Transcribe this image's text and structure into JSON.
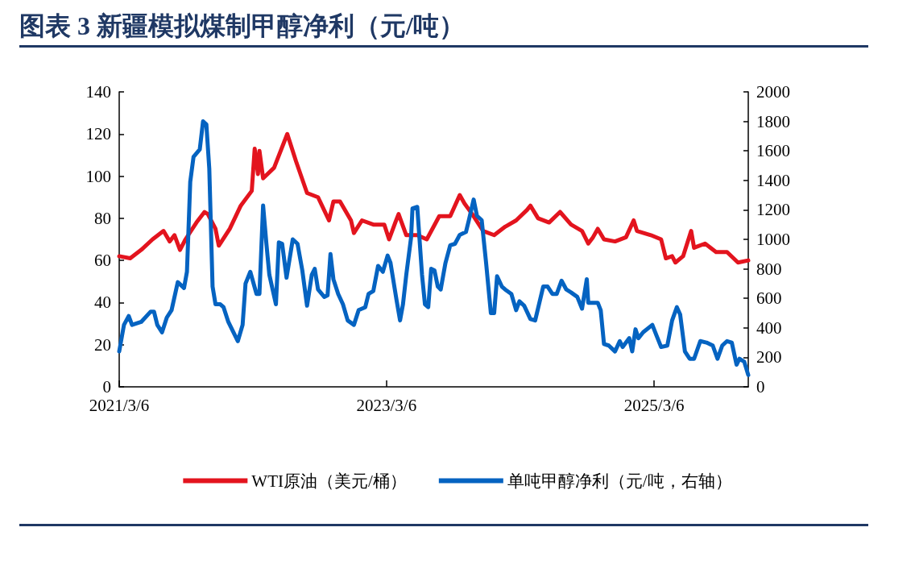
{
  "chart_data": {
    "type": "line",
    "title": "图表 3 新疆模拟煤制甲醇净利（元/吨）",
    "xlim": [
      "2021-03-06",
      "2025-11-18"
    ],
    "xticks": [
      {
        "value": "2021-03-06",
        "label": "2021/3/6"
      },
      {
        "value": "2023-03-06",
        "label": "2023/3/6"
      },
      {
        "value": "2025-03-06",
        "label": "2025/3/6"
      }
    ],
    "ylim": [
      0,
      140
    ],
    "yticks": [
      0,
      20,
      40,
      60,
      80,
      100,
      120,
      140
    ],
    "y2lim": [
      0,
      2000
    ],
    "y2ticks": [
      0,
      200,
      400,
      600,
      800,
      1000,
      1200,
      1400,
      1600,
      1800,
      2000
    ],
    "legend": "bottom",
    "grid": false,
    "marker": "none",
    "line_style": "solid",
    "series": [
      {
        "name": "WTI原油（美元/桶）",
        "color": "#e3141e",
        "x": [
          "2021-03-06",
          "2021-04-05",
          "2021-05-05",
          "2021-06-05",
          "2021-07-05",
          "2021-07-22",
          "2021-08-04",
          "2021-08-19",
          "2021-09-03",
          "2021-10-03",
          "2021-10-25",
          "2021-11-03",
          "2021-11-24",
          "2021-12-03",
          "2022-01-02",
          "2022-02-01",
          "2022-03-03",
          "2022-03-11",
          "2022-03-20",
          "2022-03-24",
          "2022-04-03",
          "2022-05-03",
          "2022-06-08",
          "2022-07-02",
          "2022-08-01",
          "2022-08-31",
          "2022-09-30",
          "2022-10-12",
          "2022-10-30",
          "2022-11-29",
          "2022-12-07",
          "2022-12-29",
          "2023-01-29",
          "2023-02-28",
          "2023-03-13",
          "2023-03-30",
          "2023-04-08",
          "2023-04-29",
          "2023-05-29",
          "2023-06-24",
          "2023-07-28",
          "2023-08-27",
          "2023-09-22",
          "2023-10-05",
          "2023-10-26",
          "2023-11-25",
          "2023-12-25",
          "2024-01-24",
          "2024-02-23",
          "2024-03-24",
          "2024-04-02",
          "2024-04-23",
          "2024-05-23",
          "2024-06-22",
          "2024-07-22",
          "2024-08-21",
          "2024-09-07",
          "2024-09-20",
          "2024-10-03",
          "2024-10-20",
          "2024-11-19",
          "2024-12-19",
          "2025-01-09",
          "2025-01-18",
          "2025-02-25",
          "2025-03-25",
          "2025-04-07",
          "2025-04-24",
          "2025-05-03",
          "2025-05-24",
          "2025-06-15",
          "2025-06-23",
          "2025-07-23",
          "2025-08-22",
          "2025-09-21",
          "2025-10-21",
          "2025-11-18"
        ],
        "values": [
          62,
          61,
          65,
          70,
          74,
          69,
          72,
          65,
          70,
          78,
          83,
          82,
          75,
          67,
          75,
          86,
          93,
          113,
          101,
          112,
          99,
          104,
          120,
          107,
          92,
          90,
          79,
          88,
          88,
          79,
          73,
          79,
          77,
          77,
          70,
          78,
          82,
          72,
          72,
          70,
          81,
          81,
          91,
          87,
          82,
          74,
          72,
          76,
          79,
          84,
          86,
          80,
          78,
          83,
          77,
          74,
          68,
          71,
          75,
          70,
          69,
          71,
          79,
          74,
          72,
          70,
          61,
          62,
          59,
          62,
          74,
          66,
          68,
          64,
          64,
          59,
          60
        ]
      },
      {
        "name": "单吨甲醇净利（元/吨，右轴）",
        "color": "#0563c1",
        "axis": "y2",
        "x": [
          "2021-03-06",
          "2021-03-19",
          "2021-04-01",
          "2021-04-10",
          "2021-05-05",
          "2021-05-31",
          "2021-06-09",
          "2021-06-18",
          "2021-07-01",
          "2021-07-14",
          "2021-07-27",
          "2021-08-13",
          "2021-08-30",
          "2021-09-07",
          "2021-09-16",
          "2021-09-25",
          "2021-10-12",
          "2021-10-21",
          "2021-10-30",
          "2021-11-07",
          "2021-11-16",
          "2021-11-24",
          "2021-12-07",
          "2021-12-16",
          "2021-12-29",
          "2022-01-24",
          "2022-02-06",
          "2022-02-14",
          "2022-02-27",
          "2022-03-16",
          "2022-03-24",
          "2022-04-03",
          "2022-04-12",
          "2022-04-20",
          "2022-05-08",
          "2022-05-16",
          "2022-05-25",
          "2022-06-06",
          "2022-06-23",
          "2022-07-06",
          "2022-07-19",
          "2022-08-01",
          "2022-08-14",
          "2022-08-22",
          "2022-08-31",
          "2022-09-17",
          "2022-09-26",
          "2022-10-04",
          "2022-10-12",
          "2022-10-25",
          "2022-11-07",
          "2022-11-20",
          "2022-12-07",
          "2022-12-20",
          "2023-01-07",
          "2023-01-16",
          "2023-01-29",
          "2023-02-11",
          "2023-02-24",
          "2023-03-09",
          "2023-03-17",
          "2023-04-03",
          "2023-04-12",
          "2023-04-20",
          "2023-04-29",
          "2023-05-12",
          "2023-05-16",
          "2023-05-29",
          "2023-06-11",
          "2023-06-19",
          "2023-06-28",
          "2023-07-06",
          "2023-07-15",
          "2023-07-24",
          "2023-08-01",
          "2023-08-14",
          "2023-08-27",
          "2023-09-09",
          "2023-09-22",
          "2023-10-09",
          "2023-10-17",
          "2023-10-30",
          "2023-11-08",
          "2023-11-21",
          "2023-12-03",
          "2023-12-16",
          "2023-12-25",
          "2024-01-02",
          "2024-01-15",
          "2024-01-24",
          "2024-02-10",
          "2024-02-23",
          "2024-03-03",
          "2024-03-16",
          "2024-04-02",
          "2024-04-15",
          "2024-05-07",
          "2024-05-19",
          "2024-06-01",
          "2024-06-13",
          "2024-06-26",
          "2024-07-09",
          "2024-07-22",
          "2024-08-08",
          "2024-08-21",
          "2024-09-03",
          "2024-09-07",
          "2024-10-03",
          "2024-10-11",
          "2024-10-20",
          "2024-11-02",
          "2024-11-19",
          "2024-12-02",
          "2024-12-10",
          "2024-12-28",
          "2025-01-05",
          "2025-01-14",
          "2025-01-22",
          "2025-02-04",
          "2025-03-01",
          "2025-03-12",
          "2025-03-25",
          "2025-04-11",
          "2025-04-24",
          "2025-05-07",
          "2025-05-16",
          "2025-05-29",
          "2025-06-11",
          "2025-06-23",
          "2025-07-10",
          "2025-07-27",
          "2025-08-13",
          "2025-08-26",
          "2025-09-08",
          "2025-09-21",
          "2025-10-04",
          "2025-10-17",
          "2025-10-25",
          "2025-11-07",
          "2025-11-18"
        ],
        "values": [
          240,
          420,
          480,
          420,
          440,
          510,
          510,
          420,
          370,
          470,
          520,
          710,
          670,
          780,
          1390,
          1560,
          1610,
          1800,
          1780,
          1480,
          680,
          560,
          560,
          540,
          440,
          310,
          420,
          700,
          780,
          630,
          630,
          1230,
          970,
          760,
          560,
          980,
          970,
          740,
          1000,
          970,
          790,
          550,
          760,
          800,
          660,
          610,
          620,
          900,
          730,
          630,
          560,
          450,
          420,
          520,
          540,
          630,
          650,
          820,
          780,
          890,
          840,
          580,
          450,
          560,
          760,
          1010,
          1210,
          1220,
          760,
          560,
          540,
          800,
          790,
          680,
          660,
          840,
          960,
          970,
          1030,
          1050,
          1130,
          1270,
          1160,
          1130,
          840,
          500,
          500,
          750,
          680,
          660,
          630,
          520,
          580,
          550,
          460,
          450,
          680,
          680,
          630,
          630,
          720,
          660,
          640,
          610,
          530,
          730,
          570,
          570,
          520,
          290,
          280,
          240,
          310,
          270,
          330,
          240,
          390,
          330,
          370,
          420,
          350,
          270,
          280,
          450,
          540,
          490,
          240,
          190,
          190,
          310,
          300,
          280,
          190,
          280,
          310,
          300,
          150,
          190,
          170,
          80
        ]
      }
    ]
  }
}
